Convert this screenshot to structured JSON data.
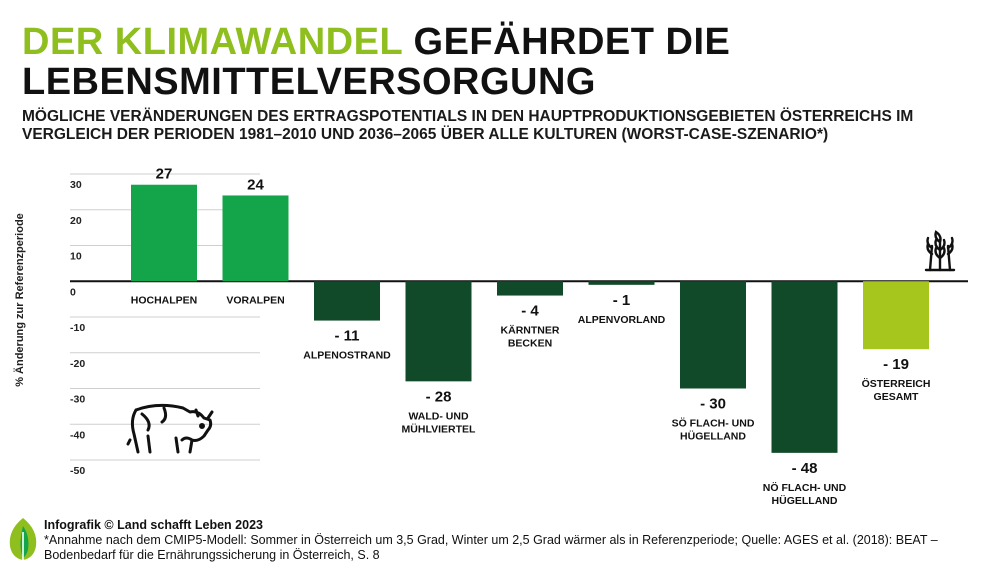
{
  "header": {
    "title_accent": "DER KLIMAWANDEL",
    "title_rest_line1": " GEFÄHRDET DIE",
    "title_line2": "LEBENSMITTELVERSORGUNG",
    "subtitle": "MÖGLICHE VERÄNDERUNGEN DES ERTRAGSPOTENTIALS IN DEN HAUPTPRODUKTIONSGEBIETEN ÖSTERREICHS IM VERGLEICH DER PERIODEN 1981–2010 UND 2036–2065 ÜBER ALLE KULTUREN (WORST-CASE-SZENARIO*)"
  },
  "chart_data": {
    "type": "bar",
    "title": "MÖGLICHE VERÄNDERUNGEN DES ERTRAGSPOTENTIALS IN DEN HAUPTPRODUKTIONSGEBIETEN ÖSTERREICHS IM VERGLEICH DER PERIODEN 1981–2010 UND 2036–2065 ÜBER ALLE KULTUREN (WORST-CASE-SZENARIO*)",
    "xlabel": "",
    "ylabel": "% Änderung zur Referenzperiode",
    "ylim": [
      -50,
      30
    ],
    "yticks": [
      30,
      20,
      10,
      0,
      -10,
      -20,
      -30,
      -40,
      -50
    ],
    "ytick_labels": [
      "30",
      "20",
      "10",
      "0",
      "-10",
      "-20",
      "-30",
      "-40",
      "-50"
    ],
    "grid": true,
    "categories": [
      [
        "HOCHALPEN"
      ],
      [
        "VORALPEN"
      ],
      [
        "ALPENOSTRAND"
      ],
      [
        "WALD- UND",
        "MÜHLVIERTEL"
      ],
      [
        "KÄRNTNER",
        "BECKEN"
      ],
      [
        "ALPENVORLAND"
      ],
      [
        "SÖ FLACH- UND",
        "HÜGELLAND"
      ],
      [
        "NÖ FLACH- UND",
        "HÜGELLAND"
      ],
      [
        "ÖSTERREICH",
        "GESAMT"
      ]
    ],
    "values": [
      27,
      24,
      -11,
      -28,
      -4,
      -1,
      -30,
      -48,
      -19
    ],
    "value_labels": [
      "27",
      "24",
      "- 11",
      "- 28",
      "- 4",
      "- 1",
      "- 30",
      "- 48",
      "- 19"
    ],
    "colors": {
      "positive": "#14a44a",
      "negative": "#114a28",
      "total": "#a6c61e"
    },
    "icons": [
      "cow-icon",
      "wheat-icon"
    ]
  },
  "footer": {
    "credit": "Infografik © Land schafft Leben 2023",
    "note": "*Annahme nach dem CMIP5-Modell: Sommer in Österreich um 3,5 Grad, Winter um 2,5 Grad wärmer als in Referenzperiode; Quelle: AGES et al. (2018): BEAT – Bodenbedarf für die Ernährungssicherung in Österreich, S. 8"
  }
}
